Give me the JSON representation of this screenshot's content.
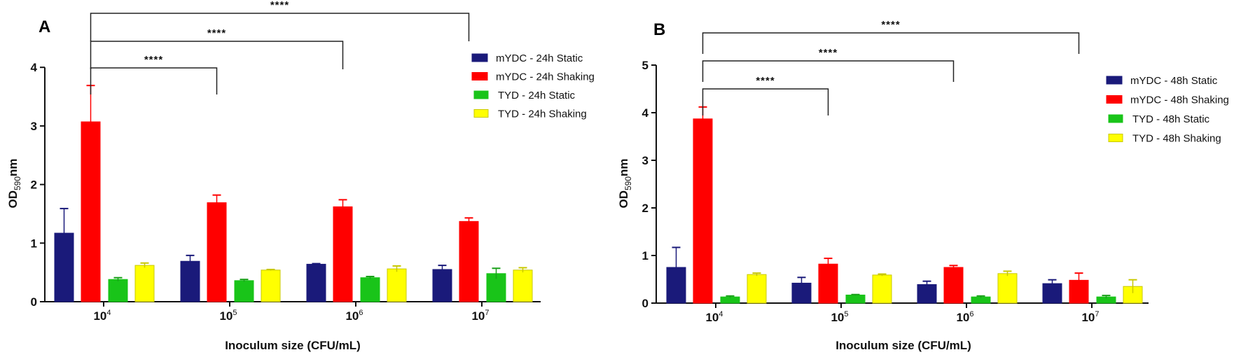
{
  "chart_data": [
    {
      "type": "bar",
      "panel_label": "A",
      "xlabel": "Inoculum size (CFU/mL)",
      "ylabel_main": "OD",
      "ylabel_sub": "590",
      "ylabel_unit": "nm",
      "ylim": [
        0,
        4
      ],
      "yticks": [
        "0",
        "1",
        "2",
        "3",
        "4"
      ],
      "categories": [
        {
          "base": "10",
          "exp": "4"
        },
        {
          "base": "10",
          "exp": "5"
        },
        {
          "base": "10",
          "exp": "6"
        },
        {
          "base": "10",
          "exp": "7"
        }
      ],
      "legend_position": "top-right",
      "series": [
        {
          "name": "mYDC - 24h Static",
          "color": "#1a1a7a",
          "values": [
            1.17,
            0.69,
            0.64,
            0.55
          ],
          "errors": [
            0.42,
            0.1,
            0.01,
            0.07
          ]
        },
        {
          "name": "mYDC - 24h Shaking",
          "color": "#ff0000",
          "values": [
            3.07,
            1.69,
            1.62,
            1.37
          ],
          "errors": [
            0.62,
            0.13,
            0.12,
            0.06
          ]
        },
        {
          "name": "TYD - 24h Static",
          "color": "#19c419",
          "values": [
            0.38,
            0.36,
            0.41,
            0.48
          ],
          "errors": [
            0.03,
            0.02,
            0.02,
            0.09
          ]
        },
        {
          "name": "TYD - 24h Shaking",
          "color": "#ffff00",
          "values": [
            0.62,
            0.54,
            0.56,
            0.54
          ],
          "errors": [
            0.04,
            0.01,
            0.05,
            0.04
          ]
        }
      ],
      "significance": [
        {
          "from": 0,
          "to": 1,
          "label": "****"
        },
        {
          "from": 0,
          "to": 2,
          "label": "****"
        },
        {
          "from": 0,
          "to": 3,
          "label": "****"
        }
      ]
    },
    {
      "type": "bar",
      "panel_label": "B",
      "xlabel": "Inoculum size (CFU/mL)",
      "ylabel_main": "OD",
      "ylabel_sub": "590",
      "ylabel_unit": "nm",
      "ylim": [
        0,
        5
      ],
      "yticks": [
        "0",
        "1",
        "2",
        "3",
        "4",
        "5"
      ],
      "categories": [
        {
          "base": "10",
          "exp": "4"
        },
        {
          "base": "10",
          "exp": "5"
        },
        {
          "base": "10",
          "exp": "6"
        },
        {
          "base": "10",
          "exp": "7"
        }
      ],
      "legend_position": "right",
      "series": [
        {
          "name": "mYDC - 48h Static",
          "color": "#1a1a7a",
          "values": [
            0.75,
            0.42,
            0.39,
            0.41
          ],
          "errors": [
            0.42,
            0.12,
            0.07,
            0.08
          ]
        },
        {
          "name": "mYDC - 48h Shaking",
          "color": "#ff0000",
          "values": [
            3.87,
            0.82,
            0.75,
            0.48
          ],
          "errors": [
            0.25,
            0.12,
            0.04,
            0.15
          ]
        },
        {
          "name": "TYD - 48h Static",
          "color": "#19c419",
          "values": [
            0.13,
            0.17,
            0.13,
            0.13
          ],
          "errors": [
            0.02,
            0.01,
            0.02,
            0.03
          ]
        },
        {
          "name": "TYD - 48h Shaking",
          "color": "#ffff00",
          "values": [
            0.6,
            0.59,
            0.62,
            0.35
          ],
          "errors": [
            0.03,
            0.02,
            0.05,
            0.14
          ]
        }
      ],
      "significance": [
        {
          "from": 0,
          "to": 1,
          "label": "****"
        },
        {
          "from": 0,
          "to": 2,
          "label": "****"
        },
        {
          "from": 0,
          "to": 3,
          "label": "****"
        }
      ]
    }
  ]
}
